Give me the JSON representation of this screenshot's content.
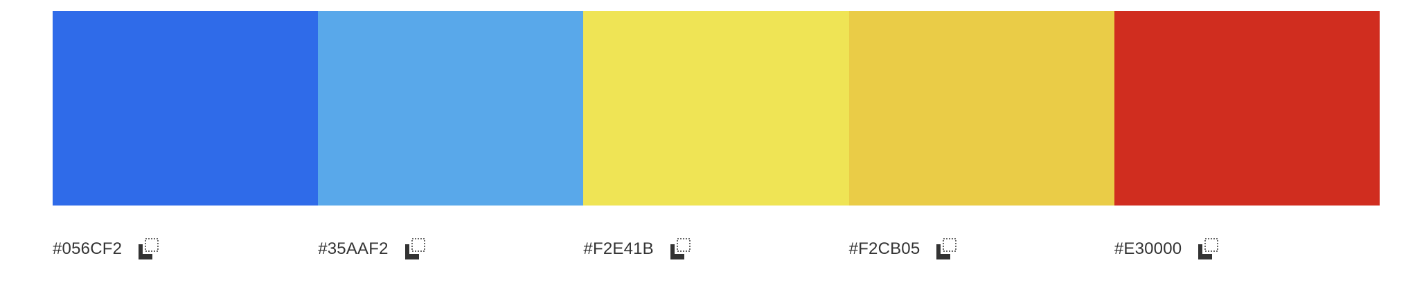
{
  "palette": {
    "colors": [
      {
        "hex": "#056CF2",
        "display_color": "#2f6be9"
      },
      {
        "hex": "#35AAF2",
        "display_color": "#59a8ea"
      },
      {
        "hex": "#F2E41B",
        "display_color": "#efe455"
      },
      {
        "hex": "#F2CB05",
        "display_color": "#eacc47"
      },
      {
        "hex": "#E30000",
        "display_color": "#d02d1f"
      }
    ],
    "copy_icon": "copy-icon"
  }
}
